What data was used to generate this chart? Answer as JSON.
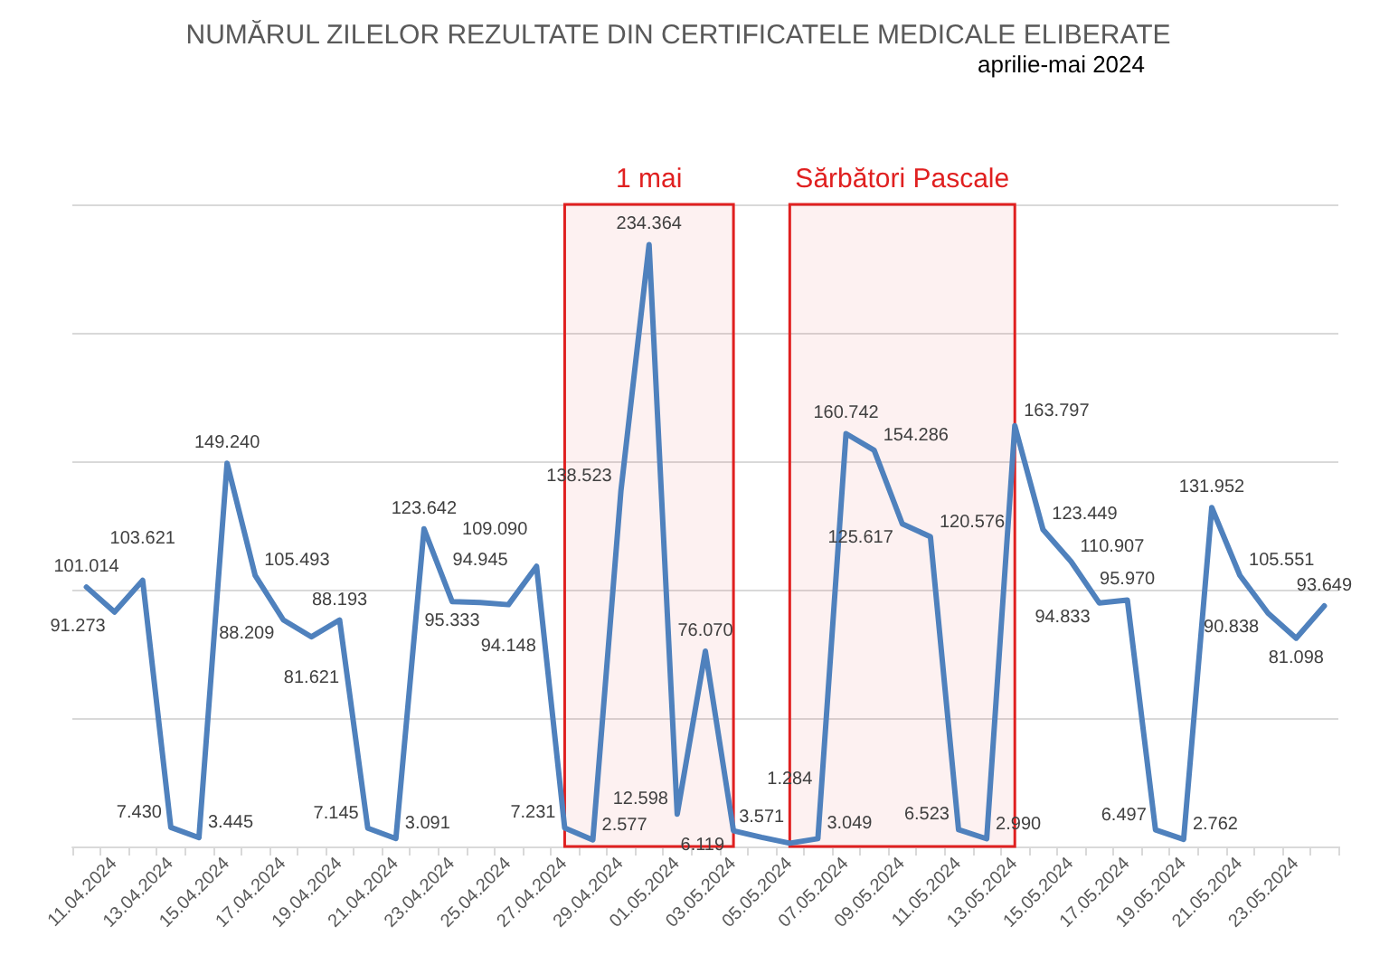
{
  "chart_data": {
    "type": "line",
    "title": "NUMĂRUL ZILELOR REZULTATE DIN CERTIFICATELE MEDICALE ELIBERATE",
    "subtitle": "aprilie-mai 2024",
    "categories": [
      null,
      "11.04.2024",
      null,
      "13.04.2024",
      null,
      "15.04.2024",
      null,
      "17.04.2024",
      null,
      "19.04.2024",
      null,
      "21.04.2024",
      null,
      "23.04.2024",
      null,
      "25.04.2024",
      null,
      "27.04.2024",
      null,
      "29.04.2024",
      null,
      "01.05.2024",
      null,
      "03.05.2024",
      null,
      "05.05.2024",
      null,
      "07.05.2024",
      null,
      "09.05.2024",
      null,
      "11.05.2024",
      null,
      "13.05.2024",
      null,
      "15.05.2024",
      null,
      "17.05.2024",
      null,
      "19.05.2024",
      null,
      "21.05.2024",
      null,
      "23.05.2024",
      null
    ],
    "series": [
      {
        "color": "#4f81bd",
        "values": [
          101014,
          91273,
          103621,
          7430,
          3445,
          149240,
          105493,
          88209,
          81621,
          88193,
          7145,
          3091,
          123642,
          95333,
          94945,
          94148,
          109090,
          7231,
          2577,
          138523,
          234364,
          12598,
          76070,
          6119,
          3571,
          1284,
          3049,
          160742,
          154286,
          125617,
          120576,
          6523,
          2990,
          163797,
          123449,
          110907,
          94833,
          95970,
          6497,
          2762,
          131952,
          105551,
          90838,
          81098,
          93649
        ],
        "value_labels": [
          "101.014",
          "91.273",
          "103.621",
          "7.430",
          "3.445",
          "149.240",
          "105.493",
          "88.209",
          "81.621",
          "88.193",
          "7.145",
          "3.091",
          "123.642",
          "95.333",
          "94.945",
          "94.148",
          "109.090",
          "7.231",
          "2.577",
          "138.523",
          "234.364",
          "12.598",
          "76.070",
          "6.119",
          "3.571",
          "1.284",
          "3.049",
          "160.742",
          "154.286",
          "125.617",
          "120.576",
          "6.523",
          "2.990",
          "163.797",
          "123.449",
          "110.907",
          "94.833",
          "95.970",
          "6.497",
          "2.762",
          "131.952",
          "105.551",
          "90.838",
          "81.098",
          "93.649"
        ]
      }
    ],
    "bands": [
      {
        "axis": "x",
        "from": "27.04.2024",
        "to": "03.05.2024",
        "label": "1 mai",
        "color": "#e02020"
      },
      {
        "axis": "x",
        "from": "05.05.2024",
        "to": "13.05.2024",
        "label": "Sărbători Pascale",
        "color": "#e02020"
      }
    ],
    "grid": "y",
    "marker": "none",
    "line_style": "solid",
    "tick_labels": "x"
  }
}
